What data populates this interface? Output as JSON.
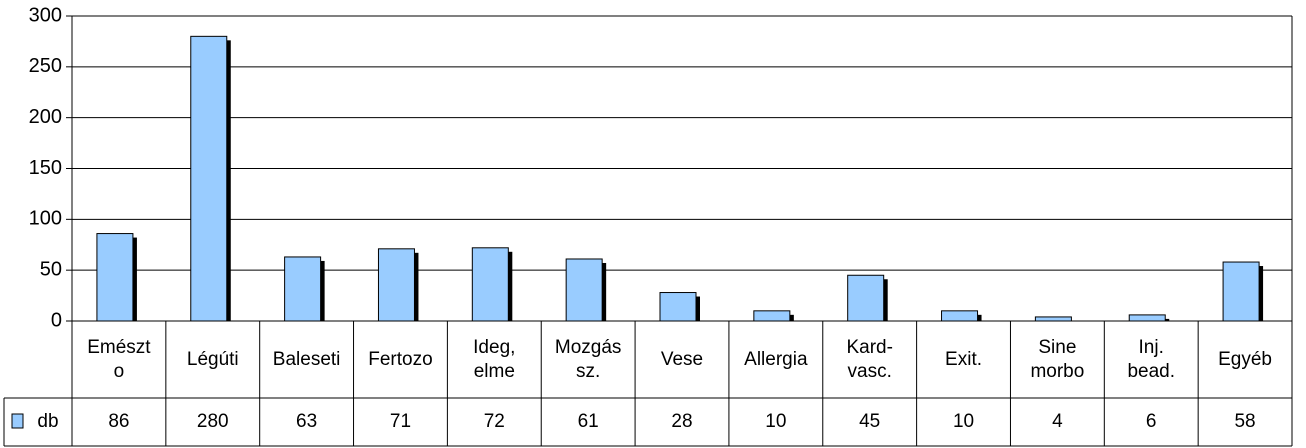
{
  "chart_data": {
    "type": "bar",
    "categories": [
      "Emészto",
      "Légúti",
      "Baleseti",
      "Fertozo",
      "Ideg, elme",
      "Mozgás sz.",
      "Vese",
      "Allergia",
      "Kard-vasc.",
      "Exit.",
      "Sine morbo",
      "Inj. bead.",
      "Egyéb"
    ],
    "series": [
      {
        "name": "db",
        "color": "#99ccff",
        "values": [
          86,
          280,
          63,
          71,
          72,
          61,
          28,
          10,
          45,
          10,
          4,
          6,
          58
        ]
      }
    ],
    "ylim": [
      0,
      300
    ],
    "yticks": [
      0,
      50,
      100,
      150,
      200,
      250,
      300
    ],
    "grid": true,
    "data_table": true
  }
}
